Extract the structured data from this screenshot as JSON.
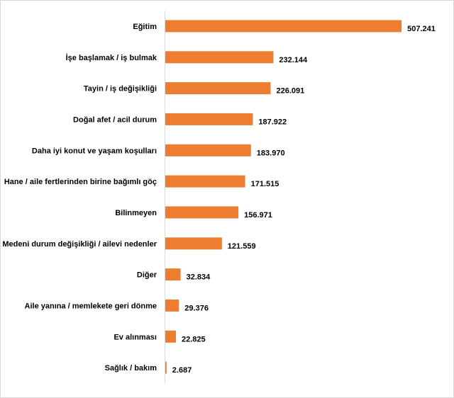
{
  "chart_data": {
    "type": "bar",
    "orientation": "horizontal",
    "categories": [
      "Eğitim",
      "İşe başlamak / iş bulmak",
      "Tayin / iş değişikliği",
      "Doğal afet / acil durum",
      "Daha iyi konut ve yaşam koşulları",
      "Hane / aile fertlerinden birine bağımlı göç",
      "Bilinmeyen",
      "Medeni durum değişikliği / ailevi nedenler",
      "Diğer",
      "Aile yanına / memlekete geri dönme",
      "Ev alınması",
      "Sağlık / bakım"
    ],
    "values": [
      507241,
      232144,
      226091,
      187922,
      183970,
      171515,
      156971,
      121559,
      32834,
      29376,
      22825,
      2687
    ],
    "value_labels": [
      "507.241",
      "232.144",
      "226.091",
      "187.922",
      "183.970",
      "171.515",
      "156.971",
      "121.559",
      "32.834",
      "29.376",
      "22.825",
      "2.687"
    ],
    "title": "",
    "xlabel": "",
    "ylabel": "",
    "xlim": [
      0,
      600000
    ],
    "grid": false,
    "legend": "none",
    "colors": {
      "bar": "#ED7D31",
      "axis": "#d9d9d9",
      "text": "#000000"
    }
  }
}
